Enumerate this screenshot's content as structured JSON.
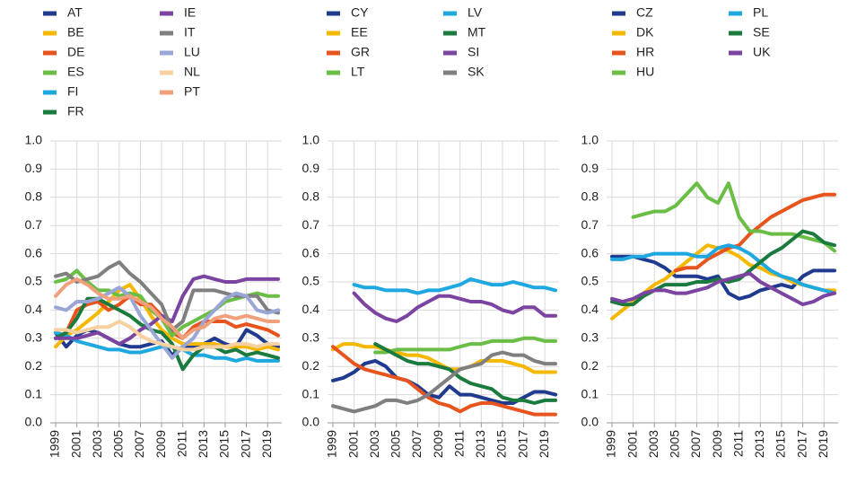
{
  "chart_data": [
    {
      "type": "line",
      "x": [
        1999,
        2000,
        2001,
        2002,
        2003,
        2004,
        2005,
        2006,
        2007,
        2008,
        2009,
        2010,
        2011,
        2012,
        2013,
        2014,
        2015,
        2016,
        2017,
        2018,
        2019,
        2020
      ],
      "xlim": [
        1999,
        2020
      ],
      "xticks": [
        1999,
        2001,
        2003,
        2005,
        2007,
        2009,
        2011,
        2013,
        2015,
        2017,
        2019
      ],
      "ylim": [
        0,
        1
      ],
      "yticks": [
        {
          "value": 0,
          "label": "0.0"
        },
        0.1,
        0.2,
        0.3,
        0.4,
        0.5,
        0.6,
        0.7,
        0.8,
        0.9,
        {
          "value": 1,
          "label": "1.0"
        }
      ],
      "grid": true,
      "series": [
        {
          "name": "AT",
          "color": "#1f3a8f",
          "values": [
            0.32,
            0.27,
            0.31,
            0.33,
            0.32,
            0.3,
            0.28,
            0.27,
            0.27,
            0.28,
            0.29,
            0.24,
            0.27,
            0.27,
            0.28,
            0.3,
            0.28,
            0.27,
            0.33,
            0.31,
            0.28,
            0.27
          ]
        },
        {
          "name": "BE",
          "color": "#f5b800",
          "values": [
            0.27,
            0.31,
            0.33,
            0.36,
            0.39,
            0.43,
            0.47,
            0.49,
            0.44,
            0.38,
            0.33,
            0.3,
            0.28,
            0.28,
            0.28,
            0.28,
            0.27,
            0.27,
            0.27,
            0.26,
            0.27,
            0.26
          ]
        },
        {
          "name": "DE",
          "color": "#e8541e",
          "values": [
            0.3,
            0.32,
            0.4,
            0.42,
            0.43,
            0.4,
            0.42,
            0.45,
            0.42,
            0.42,
            0.38,
            0.32,
            0.3,
            0.34,
            0.36,
            0.36,
            0.36,
            0.34,
            0.35,
            0.34,
            0.33,
            0.31
          ]
        },
        {
          "name": "ES",
          "color": "#6abe45",
          "values": [
            0.5,
            0.51,
            0.54,
            0.5,
            0.47,
            0.47,
            0.45,
            0.46,
            0.45,
            0.4,
            0.37,
            0.31,
            0.34,
            0.36,
            0.38,
            0.4,
            0.43,
            0.44,
            0.45,
            0.46,
            0.45,
            0.45
          ]
        },
        {
          "name": "FI",
          "color": "#1fa8e0",
          "values": [
            0.32,
            0.31,
            0.29,
            0.28,
            0.27,
            0.26,
            0.26,
            0.25,
            0.25,
            0.26,
            0.27,
            0.27,
            0.26,
            0.24,
            0.24,
            0.23,
            0.23,
            0.22,
            0.23,
            0.22,
            0.22,
            0.22
          ]
        },
        {
          "name": "FR",
          "color": "#1b7a3e",
          "values": [
            0.3,
            0.32,
            0.37,
            0.44,
            0.44,
            0.42,
            0.4,
            0.38,
            0.35,
            0.33,
            0.32,
            0.28,
            0.19,
            0.24,
            0.27,
            0.27,
            0.25,
            0.26,
            0.24,
            0.25,
            0.24,
            0.23
          ]
        },
        {
          "name": "IE",
          "color": "#7b44a0",
          "values": [
            0.3,
            0.3,
            0.3,
            0.31,
            0.32,
            0.3,
            0.28,
            0.3,
            0.33,
            0.35,
            0.38,
            0.36,
            0.45,
            0.51,
            0.52,
            0.51,
            0.5,
            0.5,
            0.51,
            0.51,
            0.51,
            0.51
          ]
        },
        {
          "name": "IT",
          "color": "#7f7f7f",
          "values": [
            0.52,
            0.53,
            0.5,
            0.51,
            0.52,
            0.55,
            0.57,
            0.53,
            0.5,
            0.46,
            0.42,
            0.33,
            0.36,
            0.47,
            0.47,
            0.47,
            0.46,
            0.45,
            0.45,
            0.45,
            0.4,
            0.39
          ]
        },
        {
          "name": "LU",
          "color": "#9aa6d6",
          "values": [
            0.41,
            0.4,
            0.43,
            0.43,
            0.44,
            0.46,
            0.48,
            0.45,
            0.38,
            0.33,
            0.28,
            0.23,
            0.27,
            0.3,
            0.36,
            0.4,
            0.44,
            0.46,
            0.45,
            0.4,
            0.39,
            0.4
          ]
        },
        {
          "name": "NL",
          "color": "#f7d0a0",
          "values": [
            0.33,
            0.33,
            0.32,
            0.33,
            0.34,
            0.34,
            0.36,
            0.34,
            0.31,
            0.29,
            0.28,
            0.27,
            0.26,
            0.26,
            0.27,
            0.27,
            0.27,
            0.28,
            0.28,
            0.27,
            0.28,
            0.28
          ]
        },
        {
          "name": "PT",
          "color": "#f0a07a",
          "values": [
            0.45,
            0.49,
            0.51,
            0.49,
            0.46,
            0.44,
            0.44,
            0.45,
            0.43,
            0.41,
            0.37,
            0.34,
            0.3,
            0.33,
            0.34,
            0.37,
            0.38,
            0.37,
            0.38,
            0.37,
            0.36,
            0.36
          ]
        }
      ]
    },
    {
      "type": "line",
      "x": [
        1999,
        2000,
        2001,
        2002,
        2003,
        2004,
        2005,
        2006,
        2007,
        2008,
        2009,
        2010,
        2011,
        2012,
        2013,
        2014,
        2015,
        2016,
        2017,
        2018,
        2019,
        2020
      ],
      "xlim": [
        1999,
        2020
      ],
      "xticks": [
        1999,
        2001,
        2003,
        2005,
        2007,
        2009,
        2011,
        2013,
        2015,
        2017,
        2019
      ],
      "ylim": [
        0,
        1
      ],
      "yticks": [
        {
          "value": 0,
          "label": "0.0"
        },
        0.1,
        0.2,
        0.3,
        0.4,
        0.5,
        0.6,
        0.7,
        0.8,
        0.9,
        {
          "value": 1,
          "label": "1.0"
        }
      ],
      "grid": true,
      "series": [
        {
          "name": "CY",
          "color": "#1f3a8f",
          "values": [
            0.15,
            0.16,
            0.18,
            0.21,
            0.22,
            0.2,
            0.16,
            0.15,
            0.13,
            0.1,
            0.09,
            0.13,
            0.1,
            0.1,
            0.09,
            0.08,
            0.07,
            0.07,
            0.09,
            0.11,
            0.11,
            0.1
          ]
        },
        {
          "name": "EE",
          "color": "#f5b800",
          "values": [
            0.26,
            0.28,
            0.28,
            0.27,
            0.27,
            0.26,
            0.25,
            0.24,
            0.24,
            0.23,
            0.21,
            0.19,
            0.19,
            0.2,
            0.22,
            0.22,
            0.22,
            0.21,
            0.2,
            0.18,
            0.18,
            0.18
          ]
        },
        {
          "name": "GR",
          "color": "#e8541e",
          "values": [
            0.27,
            0.24,
            0.21,
            0.19,
            0.18,
            0.17,
            0.16,
            0.15,
            0.12,
            0.09,
            0.07,
            0.06,
            0.04,
            0.06,
            0.07,
            0.07,
            0.06,
            0.05,
            0.04,
            0.03,
            0.03,
            0.03
          ]
        },
        {
          "name": "LT",
          "color": "#6abe45",
          "values": [
            null,
            null,
            null,
            null,
            0.25,
            0.25,
            0.26,
            0.26,
            0.26,
            0.26,
            0.26,
            0.26,
            0.27,
            0.28,
            0.28,
            0.29,
            0.29,
            0.29,
            0.3,
            0.3,
            0.29,
            0.29
          ]
        },
        {
          "name": "LV",
          "color": "#1fa8e0",
          "values": [
            null,
            null,
            0.49,
            0.48,
            0.48,
            0.47,
            0.47,
            0.47,
            0.46,
            0.47,
            0.47,
            0.48,
            0.49,
            0.51,
            0.5,
            0.49,
            0.49,
            0.5,
            0.49,
            0.48,
            0.48,
            0.47
          ]
        },
        {
          "name": "MT",
          "color": "#1b7a3e",
          "values": [
            null,
            null,
            null,
            null,
            0.28,
            0.26,
            0.24,
            0.22,
            0.21,
            0.21,
            0.2,
            0.19,
            0.16,
            0.14,
            0.13,
            0.12,
            0.09,
            0.08,
            0.08,
            0.07,
            0.08,
            0.08
          ]
        },
        {
          "name": "SI",
          "color": "#7b44a0",
          "values": [
            null,
            null,
            0.46,
            0.42,
            0.39,
            0.37,
            0.36,
            0.38,
            0.41,
            0.43,
            0.45,
            0.45,
            0.44,
            0.43,
            0.43,
            0.42,
            0.4,
            0.39,
            0.41,
            0.41,
            0.38,
            0.38
          ]
        },
        {
          "name": "SK",
          "color": "#7f7f7f",
          "values": [
            0.06,
            0.05,
            0.04,
            0.05,
            0.06,
            0.08,
            0.08,
            0.07,
            0.08,
            0.1,
            0.13,
            0.16,
            0.19,
            0.2,
            0.21,
            0.24,
            0.25,
            0.24,
            0.24,
            0.22,
            0.21,
            0.21
          ]
        }
      ]
    },
    {
      "type": "line",
      "x": [
        1999,
        2000,
        2001,
        2002,
        2003,
        2004,
        2005,
        2006,
        2007,
        2008,
        2009,
        2010,
        2011,
        2012,
        2013,
        2014,
        2015,
        2016,
        2017,
        2018,
        2019,
        2020
      ],
      "xlim": [
        1999,
        2020
      ],
      "xticks": [
        1999,
        2001,
        2003,
        2005,
        2007,
        2009,
        2011,
        2013,
        2015,
        2017,
        2019
      ],
      "ylim": [
        0,
        1
      ],
      "yticks": [
        {
          "value": 0,
          "label": "0.0"
        },
        0.1,
        0.2,
        0.3,
        0.4,
        0.5,
        0.6,
        0.7,
        0.8,
        0.9,
        {
          "value": 1,
          "label": "1.0"
        }
      ],
      "grid": true,
      "series": [
        {
          "name": "CZ",
          "color": "#1f3a8f",
          "values": [
            0.59,
            0.59,
            0.59,
            0.58,
            0.57,
            0.55,
            0.52,
            0.52,
            0.52,
            0.51,
            0.52,
            0.46,
            0.44,
            0.45,
            0.47,
            0.48,
            0.49,
            0.48,
            0.52,
            0.54,
            0.54,
            0.54
          ]
        },
        {
          "name": "DK",
          "color": "#f5b800",
          "values": [
            0.37,
            0.4,
            0.43,
            0.46,
            0.49,
            0.51,
            0.54,
            0.57,
            0.6,
            0.63,
            0.62,
            0.61,
            0.59,
            0.56,
            0.55,
            0.53,
            0.52,
            0.5,
            0.49,
            0.48,
            0.47,
            0.47
          ]
        },
        {
          "name": "HR",
          "color": "#e8541e",
          "values": [
            null,
            null,
            null,
            null,
            null,
            null,
            0.54,
            0.55,
            0.55,
            0.58,
            0.6,
            0.62,
            0.63,
            0.67,
            0.7,
            0.73,
            0.75,
            0.77,
            0.79,
            0.8,
            0.81,
            0.81
          ]
        },
        {
          "name": "HU",
          "color": "#6abe45",
          "values": [
            null,
            null,
            0.73,
            0.74,
            0.75,
            0.75,
            0.77,
            0.81,
            0.85,
            0.8,
            0.78,
            0.85,
            0.73,
            0.68,
            0.68,
            0.67,
            0.67,
            0.67,
            0.66,
            0.65,
            0.64,
            0.61
          ]
        },
        {
          "name": "PL",
          "color": "#1fa8e0",
          "values": [
            0.58,
            0.58,
            0.59,
            0.59,
            0.6,
            0.6,
            0.6,
            0.6,
            0.59,
            0.59,
            0.62,
            0.63,
            0.62,
            0.6,
            0.57,
            0.54,
            0.52,
            0.51,
            0.49,
            0.48,
            0.47,
            0.46
          ]
        },
        {
          "name": "SE",
          "color": "#1b7a3e",
          "values": [
            0.43,
            0.42,
            0.42,
            0.45,
            0.47,
            0.49,
            0.49,
            0.49,
            0.5,
            0.5,
            0.51,
            0.5,
            0.51,
            0.54,
            0.57,
            0.6,
            0.62,
            0.65,
            0.68,
            0.67,
            0.64,
            0.63
          ]
        },
        {
          "name": "UK",
          "color": "#7b44a0",
          "values": [
            0.44,
            0.43,
            0.44,
            0.46,
            0.47,
            0.47,
            0.46,
            0.46,
            0.47,
            0.48,
            0.5,
            0.51,
            0.52,
            0.53,
            0.5,
            0.48,
            0.46,
            0.44,
            0.42,
            0.43,
            0.45,
            0.46
          ]
        }
      ]
    }
  ]
}
